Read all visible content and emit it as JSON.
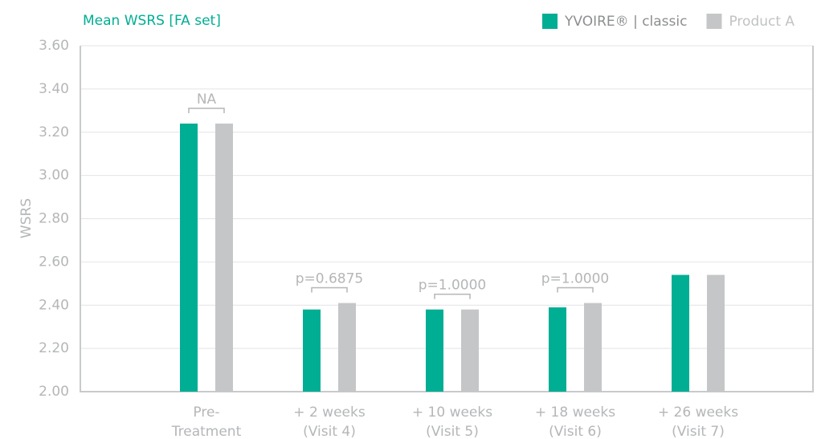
{
  "chart_data": {
    "type": "bar",
    "title": "Mean WSRS [FA set]",
    "y_label": "WSRS",
    "categories": [
      [
        "Pre-",
        "Treatment"
      ],
      [
        "+ 2 weeks",
        "(Visit 4)"
      ],
      [
        "+ 10 weeks",
        "(Visit 5)"
      ],
      [
        "+ 18 weeks",
        "(Visit 6)"
      ],
      [
        "+ 26 weeks",
        "(Visit 7)"
      ]
    ],
    "series": [
      {
        "name": "YVOIRE® | classic",
        "color": "#00ae94",
        "values": [
          3.24,
          2.38,
          2.38,
          2.39,
          2.54
        ]
      },
      {
        "name": "Product A",
        "color": "#c4c6c8",
        "values": [
          3.24,
          2.41,
          2.38,
          2.41,
          2.54
        ]
      }
    ],
    "annotations": [
      "NA",
      "p=0.6875",
      "p=1.0000",
      "p=1.0000",
      null
    ],
    "ylim": [
      2.0,
      3.6
    ],
    "yticks": [
      {
        "value": 2.0,
        "label": "2.00"
      },
      {
        "value": 2.2,
        "label": "2.20"
      },
      {
        "value": 2.4,
        "label": "2.40"
      },
      {
        "value": 2.6,
        "label": "2.60"
      },
      {
        "value": 2.8,
        "label": "2.80"
      },
      {
        "value": 3.0,
        "label": "3.00"
      },
      {
        "value": 3.2,
        "label": "3.20"
      },
      {
        "value": 3.4,
        "label": "3.40"
      },
      {
        "value": 3.6,
        "label": "3.60"
      }
    ],
    "grid": true,
    "legend": "top-right"
  }
}
